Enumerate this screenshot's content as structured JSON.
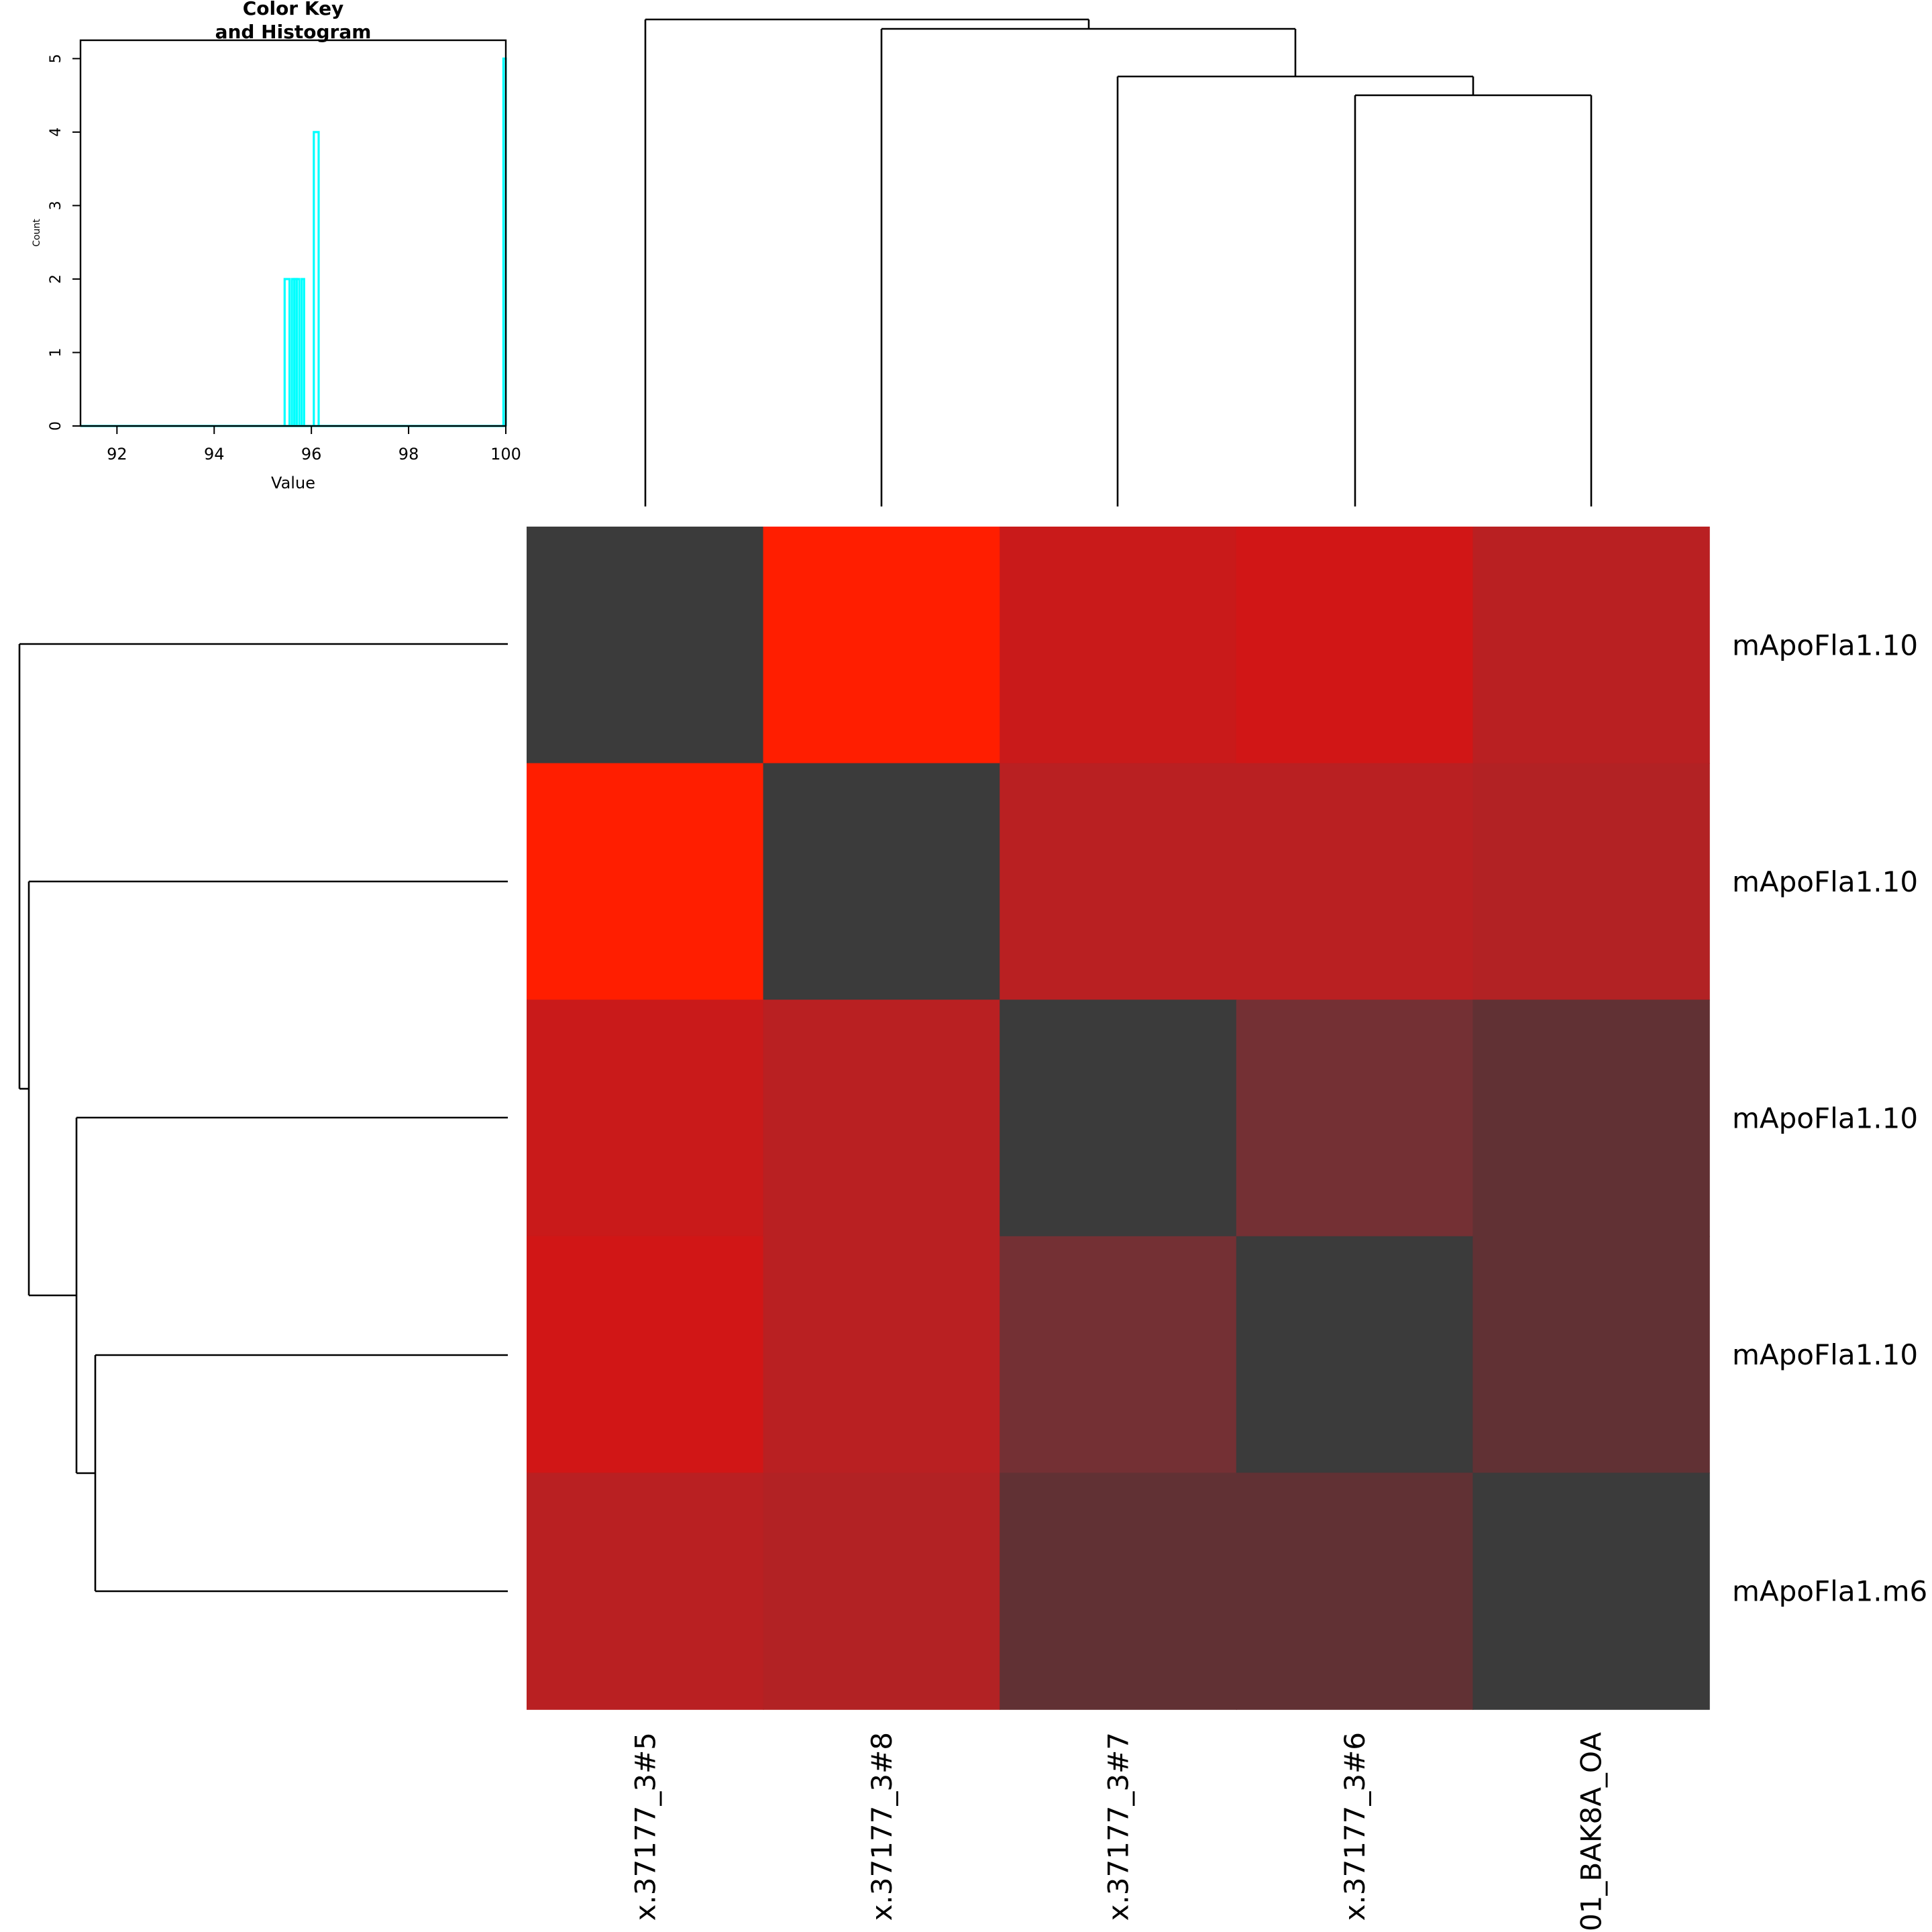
{
  "chart_data": [
    {
      "type": "heatmap",
      "title": "",
      "row_labels": [
        "mApoFla1.10",
        "mApoFla1.10",
        "mApoFla1.10",
        "mApoFla1.10",
        "mApoFla1.m6"
      ],
      "col_labels": [
        "x.37177_3#5",
        "x.37177_3#8",
        "x.37177_3#7",
        "x.37177_3#6",
        "01_BAK8A_OA"
      ],
      "values": [
        [
          100.0,
          95.4,
          95.7,
          95.6,
          95.8
        ],
        [
          95.4,
          100.0,
          95.8,
          95.8,
          95.9
        ],
        [
          95.7,
          95.8,
          100.0,
          96.1,
          96.2
        ],
        [
          95.6,
          95.8,
          96.1,
          100.0,
          96.2
        ],
        [
          95.8,
          95.9,
          96.2,
          96.2,
          100.0
        ]
      ],
      "colors": {
        "95.4": "#ff1e00",
        "95.6": "#d11616",
        "95.7": "#c91a1a",
        "95.8": "#b92022",
        "95.9": "#b22224",
        "96.1": "#743034",
        "96.2": "#613134",
        "100.0": "#3b3b3b"
      },
      "col_dendrogram": true,
      "row_dendrogram": true
    },
    {
      "type": "histogram",
      "title": "Color Key\nand Histogram",
      "title_lines": [
        "Color Key",
        "and Histogram"
      ],
      "xlabel": "Value",
      "ylabel": "Count",
      "xlim": [
        91.25,
        100.0
      ],
      "ylim": [
        0,
        5.25
      ],
      "xticks": [
        92,
        94,
        96,
        98,
        100
      ],
      "yticks": [
        0,
        1,
        2,
        3,
        4,
        5
      ],
      "bars": [
        {
          "x0": 95.45,
          "x1": 95.55,
          "count": 2
        },
        {
          "x0": 95.6,
          "x1": 95.65,
          "count": 2
        },
        {
          "x0": 95.65,
          "x1": 95.7,
          "count": 2
        },
        {
          "x0": 95.7,
          "x1": 95.75,
          "count": 2
        },
        {
          "x0": 95.8,
          "x1": 95.85,
          "count": 2
        },
        {
          "x0": 96.05,
          "x1": 96.15,
          "count": 4
        },
        {
          "x0": 99.95,
          "x1": 100.0,
          "count": 5
        }
      ],
      "line_color": "#00ffff"
    }
  ]
}
